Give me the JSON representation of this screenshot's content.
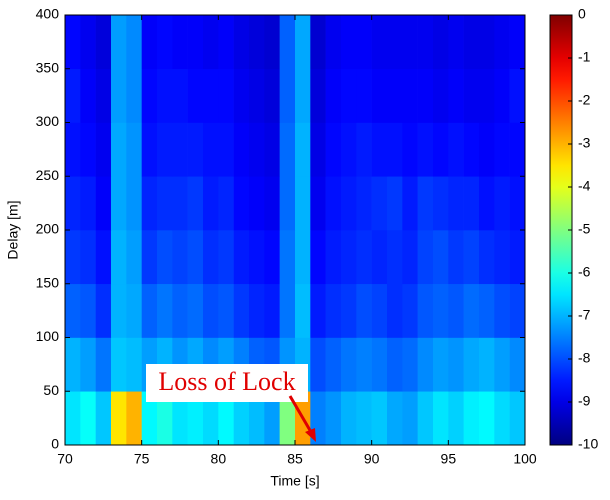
{
  "chart_data": {
    "type": "heatmap",
    "x_label": "Time [s]",
    "y_label": "Delay [m]",
    "annotation": "Loss of Lock",
    "colormap": "jet",
    "xbins": [
      70,
      71,
      72,
      73,
      74,
      75,
      76,
      77,
      78,
      79,
      80,
      81,
      82,
      83,
      84,
      85,
      86,
      87,
      88,
      89,
      90,
      91,
      92,
      93,
      94,
      95,
      96,
      97,
      98,
      99,
      100
    ],
    "ybins": [
      0,
      50,
      100,
      150,
      200,
      250,
      300,
      350,
      400
    ],
    "z": [
      [
        -6.5,
        -6.2,
        -6.8,
        -3.5,
        -3.0,
        -6.3,
        -6.0,
        -6.5,
        -6.4,
        -6.6,
        -6.3,
        -6.7,
        -6.9,
        -7.2,
        -5.0,
        -2.8,
        -7.5,
        -7.3,
        -7.0,
        -6.9,
        -6.8,
        -7.1,
        -7.2,
        -6.8,
        -6.5,
        -6.7,
        -6.4,
        -6.3,
        -6.6,
        -6.8
      ],
      [
        -7.0,
        -7.2,
        -7.6,
        -6.8,
        -6.9,
        -7.2,
        -7.0,
        -7.3,
        -7.1,
        -7.4,
        -7.2,
        -7.5,
        -7.8,
        -7.9,
        -7.3,
        -7.0,
        -8.0,
        -7.8,
        -7.6,
        -7.5,
        -7.6,
        -7.8,
        -7.7,
        -7.4,
        -7.2,
        -7.3,
        -7.1,
        -7.0,
        -7.2,
        -7.4
      ],
      [
        -7.8,
        -7.9,
        -8.3,
        -7.0,
        -7.1,
        -7.8,
        -7.6,
        -7.8,
        -7.7,
        -8.0,
        -7.9,
        -8.2,
        -8.4,
        -8.5,
        -7.6,
        -6.9,
        -8.5,
        -8.3,
        -8.2,
        -8.0,
        -8.1,
        -8.3,
        -8.2,
        -7.9,
        -7.8,
        -7.9,
        -7.7,
        -7.8,
        -8.0,
        -8.1
      ],
      [
        -8.2,
        -8.3,
        -8.6,
        -7.0,
        -7.2,
        -8.2,
        -8.0,
        -8.1,
        -8.0,
        -8.3,
        -8.2,
        -8.5,
        -8.6,
        -8.7,
        -7.6,
        -7.0,
        -8.7,
        -8.5,
        -8.4,
        -8.3,
        -8.4,
        -8.3,
        -8.4,
        -8.1,
        -8.0,
        -8.2,
        -8.1,
        -8.3,
        -8.4,
        -8.5
      ],
      [
        -8.4,
        -8.5,
        -8.8,
        -7.1,
        -7.3,
        -8.4,
        -8.3,
        -8.3,
        -8.2,
        -8.5,
        -8.4,
        -8.7,
        -8.8,
        -8.9,
        -7.7,
        -7.0,
        -8.9,
        -8.6,
        -8.5,
        -8.4,
        -8.3,
        -8.2,
        -8.5,
        -8.2,
        -8.3,
        -8.4,
        -8.4,
        -8.6,
        -8.5,
        -8.6
      ],
      [
        -8.6,
        -8.7,
        -8.9,
        -7.1,
        -7.3,
        -8.6,
        -8.5,
        -8.5,
        -8.5,
        -8.6,
        -8.6,
        -8.8,
        -8.9,
        -9.0,
        -7.7,
        -7.0,
        -9.0,
        -8.7,
        -8.6,
        -8.5,
        -8.6,
        -8.6,
        -8.7,
        -8.6,
        -8.7,
        -8.6,
        -8.7,
        -8.8,
        -8.7,
        -8.7
      ],
      [
        -8.5,
        -8.8,
        -9.0,
        -7.2,
        -7.4,
        -8.7,
        -8.6,
        -8.6,
        -8.7,
        -8.7,
        -8.7,
        -8.9,
        -9.0,
        -9.1,
        -7.8,
        -7.1,
        -9.1,
        -8.8,
        -8.7,
        -8.7,
        -8.8,
        -8.8,
        -8.8,
        -8.8,
        -8.9,
        -8.8,
        -8.9,
        -8.9,
        -8.8,
        -8.6
      ],
      [
        -8.7,
        -8.9,
        -9.1,
        -7.2,
        -7.4,
        -8.8,
        -8.7,
        -8.8,
        -8.8,
        -8.9,
        -8.8,
        -9.0,
        -9.1,
        -9.2,
        -7.8,
        -7.1,
        -9.2,
        -8.9,
        -8.8,
        -8.8,
        -8.9,
        -8.9,
        -8.9,
        -8.9,
        -9.0,
        -8.9,
        -9.0,
        -9.0,
        -8.9,
        -8.8
      ]
    ],
    "xlim": [
      70,
      100
    ],
    "xticks": [
      70,
      75,
      80,
      85,
      90,
      95,
      100
    ],
    "ylim": [
      0,
      400
    ],
    "yticks": [
      0,
      50,
      100,
      150,
      200,
      250,
      300,
      350,
      400
    ],
    "zlim": [
      -10,
      0
    ],
    "zticks": [
      0,
      -1,
      -2,
      -3,
      -4,
      -5,
      -6,
      -7,
      -8,
      -9,
      -10
    ]
  }
}
